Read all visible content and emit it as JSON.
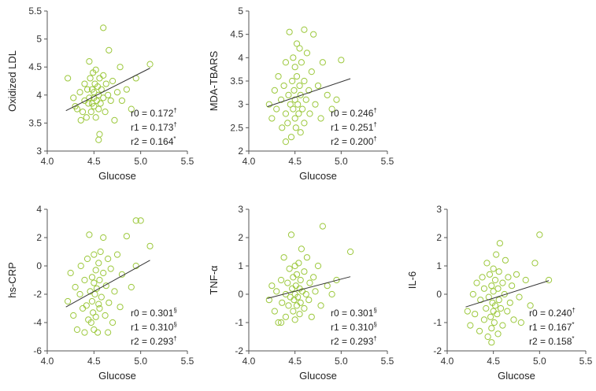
{
  "colors": {
    "point": "#9cc83c",
    "line": "#333333",
    "axis": "#555555"
  },
  "chart_data": [
    {
      "type": "scatter",
      "xlabel": "Glucose",
      "ylabel": "Oxidized LDL",
      "xlim": [
        4.0,
        5.5
      ],
      "ylim": [
        3,
        5.5
      ],
      "xticks": [
        "4.0",
        "4.5",
        "5.0",
        "5.5"
      ],
      "yticks": [
        "3",
        "3.5",
        "4",
        "4.5",
        "5",
        "5.5"
      ],
      "regression": {
        "x": [
          4.2,
          5.1
        ],
        "y": [
          3.72,
          4.48
        ]
      },
      "stats": [
        "r0 = 0.172",
        "r1 = 0.173",
        "r2 = 0.164"
      ],
      "stat_marks": [
        "†",
        "†",
        "*"
      ],
      "points": [
        [
          4.22,
          4.3
        ],
        [
          4.28,
          3.95
        ],
        [
          4.3,
          3.8
        ],
        [
          4.32,
          3.75
        ],
        [
          4.35,
          4.05
        ],
        [
          4.36,
          3.55
        ],
        [
          4.38,
          3.7
        ],
        [
          4.4,
          3.9
        ],
        [
          4.4,
          4.2
        ],
        [
          4.42,
          3.6
        ],
        [
          4.43,
          4.1
        ],
        [
          4.44,
          3.85
        ],
        [
          4.45,
          4.6
        ],
        [
          4.45,
          3.95
        ],
        [
          4.46,
          4.3
        ],
        [
          4.47,
          3.7
        ],
        [
          4.48,
          4.1
        ],
        [
          4.48,
          3.85
        ],
        [
          4.49,
          4.4
        ],
        [
          4.5,
          3.95
        ],
        [
          4.5,
          4.05
        ],
        [
          4.5,
          3.8
        ],
        [
          4.51,
          4.2
        ],
        [
          4.52,
          3.6
        ],
        [
          4.52,
          4.45
        ],
        [
          4.53,
          3.9
        ],
        [
          4.54,
          4.15
        ],
        [
          4.55,
          3.75
        ],
        [
          4.55,
          4.0
        ],
        [
          4.56,
          3.3
        ],
        [
          4.56,
          4.3
        ],
        [
          4.57,
          3.85
        ],
        [
          4.58,
          4.1
        ],
        [
          4.6,
          4.35
        ],
        [
          4.6,
          3.95
        ],
        [
          4.62,
          3.7
        ],
        [
          4.63,
          4.2
        ],
        [
          4.65,
          4.0
        ],
        [
          4.66,
          4.8
        ],
        [
          4.68,
          3.9
        ],
        [
          4.7,
          4.25
        ],
        [
          4.72,
          3.55
        ],
        [
          4.75,
          4.05
        ],
        [
          4.78,
          4.5
        ],
        [
          4.8,
          3.9
        ],
        [
          4.85,
          4.1
        ],
        [
          4.9,
          3.75
        ],
        [
          4.95,
          4.3
        ],
        [
          5.1,
          4.55
        ],
        [
          4.6,
          5.2
        ],
        [
          4.55,
          3.2
        ]
      ]
    },
    {
      "type": "scatter",
      "xlabel": "Glucose",
      "ylabel": "MDA-TBARS",
      "xlim": [
        4.0,
        5.5
      ],
      "ylim": [
        2,
        5
      ],
      "xticks": [
        "4.0",
        "4.5",
        "5.0",
        "5.5"
      ],
      "yticks": [
        "2",
        "2.5",
        "3",
        "3.5",
        "4",
        "4.5",
        "5"
      ],
      "regression": {
        "x": [
          4.2,
          5.1
        ],
        "y": [
          2.95,
          3.55
        ]
      },
      "stats": [
        "r0 = 0.246",
        "r1 = 0.251",
        "r2 = 0.200"
      ],
      "stat_marks": [
        "†",
        "†",
        "†"
      ],
      "points": [
        [
          4.22,
          3.0
        ],
        [
          4.25,
          2.7
        ],
        [
          4.28,
          3.3
        ],
        [
          4.3,
          2.9
        ],
        [
          4.32,
          3.6
        ],
        [
          4.35,
          3.1
        ],
        [
          4.36,
          2.5
        ],
        [
          4.38,
          3.4
        ],
        [
          4.4,
          2.8
        ],
        [
          4.4,
          3.9
        ],
        [
          4.42,
          2.6
        ],
        [
          4.43,
          3.2
        ],
        [
          4.44,
          4.55
        ],
        [
          4.45,
          3.0
        ],
        [
          4.46,
          2.3
        ],
        [
          4.47,
          3.5
        ],
        [
          4.48,
          2.9
        ],
        [
          4.48,
          4.0
        ],
        [
          4.49,
          3.3
        ],
        [
          4.5,
          2.7
        ],
        [
          4.5,
          3.1
        ],
        [
          4.5,
          3.8
        ],
        [
          4.51,
          2.5
        ],
        [
          4.52,
          3.6
        ],
        [
          4.52,
          4.3
        ],
        [
          4.53,
          3.0
        ],
        [
          4.54,
          2.8
        ],
        [
          4.55,
          3.4
        ],
        [
          4.55,
          4.2
        ],
        [
          4.56,
          2.4
        ],
        [
          4.56,
          3.2
        ],
        [
          4.57,
          3.9
        ],
        [
          4.58,
          2.9
        ],
        [
          4.6,
          3.5
        ],
        [
          4.6,
          2.6
        ],
        [
          4.62,
          3.1
        ],
        [
          4.63,
          4.1
        ],
        [
          4.65,
          3.3
        ],
        [
          4.66,
          2.8
        ],
        [
          4.68,
          3.7
        ],
        [
          4.7,
          4.5
        ],
        [
          4.72,
          3.0
        ],
        [
          4.75,
          3.4
        ],
        [
          4.78,
          2.7
        ],
        [
          4.8,
          3.9
        ],
        [
          4.85,
          3.2
        ],
        [
          4.9,
          2.9
        ],
        [
          4.95,
          3.1
        ],
        [
          5.0,
          3.95
        ],
        [
          4.6,
          4.6
        ],
        [
          4.4,
          2.2
        ]
      ]
    },
    {
      "type": "scatter",
      "xlabel": "Glucose",
      "ylabel": "hs-CRP",
      "xlim": [
        4.0,
        5.5
      ],
      "ylim": [
        -6,
        4
      ],
      "xticks": [
        "4.0",
        "4.5",
        "5.0",
        "5.5"
      ],
      "yticks": [
        "-6",
        "-4",
        "-2",
        "0",
        "2",
        "4"
      ],
      "regression": {
        "x": [
          4.2,
          5.1
        ],
        "y": [
          -2.9,
          0.4
        ]
      },
      "stats": [
        "r0 = 0.301",
        "r1 = 0.310",
        "r2 = 0.293"
      ],
      "stat_marks": [
        "§",
        "§",
        "†"
      ],
      "points": [
        [
          4.22,
          -2.5
        ],
        [
          4.25,
          -0.5
        ],
        [
          4.28,
          -3.5
        ],
        [
          4.3,
          -1.5
        ],
        [
          4.32,
          -4.5
        ],
        [
          4.35,
          -2.0
        ],
        [
          4.36,
          0.0
        ],
        [
          4.38,
          -3.0
        ],
        [
          4.4,
          -1.0
        ],
        [
          4.4,
          -4.7
        ],
        [
          4.42,
          -2.8
        ],
        [
          4.43,
          0.5
        ],
        [
          4.44,
          -3.8
        ],
        [
          4.45,
          2.2
        ],
        [
          4.46,
          -1.8
        ],
        [
          4.47,
          -4.0
        ],
        [
          4.48,
          -0.8
        ],
        [
          4.48,
          -2.5
        ],
        [
          4.49,
          -3.3
        ],
        [
          4.5,
          0.8
        ],
        [
          4.5,
          -1.2
        ],
        [
          4.5,
          -4.5
        ],
        [
          4.51,
          -2.0
        ],
        [
          4.52,
          -0.3
        ],
        [
          4.52,
          -3.6
        ],
        [
          4.53,
          -1.6
        ],
        [
          4.54,
          -4.7
        ],
        [
          4.55,
          -2.7
        ],
        [
          4.55,
          0.2
        ],
        [
          4.56,
          -1.0
        ],
        [
          4.56,
          -3.0
        ],
        [
          4.57,
          1.0
        ],
        [
          4.58,
          -2.2
        ],
        [
          4.6,
          -0.5
        ],
        [
          4.6,
          2.0
        ],
        [
          4.62,
          -3.5
        ],
        [
          4.63,
          -1.4
        ],
        [
          4.65,
          0.5
        ],
        [
          4.66,
          -2.6
        ],
        [
          4.68,
          -0.2
        ],
        [
          4.7,
          -4.0
        ],
        [
          4.72,
          -1.8
        ],
        [
          4.75,
          0.8
        ],
        [
          4.78,
          -2.9
        ],
        [
          4.8,
          -0.6
        ],
        [
          4.85,
          2.1
        ],
        [
          4.9,
          -1.5
        ],
        [
          4.95,
          0.0
        ],
        [
          5.0,
          3.2
        ],
        [
          4.95,
          3.2
        ],
        [
          5.1,
          1.4
        ],
        [
          4.65,
          -4.7
        ]
      ]
    },
    {
      "type": "scatter",
      "xlabel": "Glucose",
      "ylabel": "TNF-α",
      "xlim": [
        4.0,
        5.5
      ],
      "ylim": [
        -2,
        3
      ],
      "xticks": [
        "4.0",
        "4.5",
        "5.0",
        "5.5"
      ],
      "yticks": [
        "-2",
        "-1",
        "0",
        "1",
        "2",
        "3"
      ],
      "regression": {
        "x": [
          4.2,
          5.1
        ],
        "y": [
          -0.15,
          0.62
        ]
      },
      "stats": [
        "r0 = 0.301",
        "r1 = 0.310",
        "r2 = 0.293"
      ],
      "stat_marks": [
        "§",
        "§",
        "†"
      ],
      "points": [
        [
          4.22,
          -0.2
        ],
        [
          4.25,
          0.3
        ],
        [
          4.28,
          -0.6
        ],
        [
          4.3,
          0.1
        ],
        [
          4.32,
          -1.0
        ],
        [
          4.35,
          0.5
        ],
        [
          4.36,
          -0.3
        ],
        [
          4.38,
          1.3
        ],
        [
          4.4,
          0.0
        ],
        [
          4.4,
          -0.8
        ],
        [
          4.42,
          0.4
        ],
        [
          4.43,
          -0.4
        ],
        [
          4.44,
          0.9
        ],
        [
          4.45,
          -0.1
        ],
        [
          4.46,
          2.1
        ],
        [
          4.47,
          0.2
        ],
        [
          4.48,
          -0.6
        ],
        [
          4.48,
          0.6
        ],
        [
          4.49,
          -0.2
        ],
        [
          4.5,
          1.0
        ],
        [
          4.5,
          0.0
        ],
        [
          4.5,
          -0.9
        ],
        [
          4.51,
          0.3
        ],
        [
          4.52,
          -0.4
        ],
        [
          4.52,
          0.7
        ],
        [
          4.53,
          -0.1
        ],
        [
          4.54,
          1.1
        ],
        [
          4.55,
          0.2
        ],
        [
          4.55,
          -0.7
        ],
        [
          4.56,
          0.5
        ],
        [
          4.56,
          -0.3
        ],
        [
          4.57,
          1.6
        ],
        [
          4.58,
          0.1
        ],
        [
          4.6,
          -0.5
        ],
        [
          4.6,
          0.8
        ],
        [
          4.62,
          0.0
        ],
        [
          4.63,
          1.3
        ],
        [
          4.65,
          -0.2
        ],
        [
          4.66,
          0.4
        ],
        [
          4.68,
          -0.8
        ],
        [
          4.7,
          0.6
        ],
        [
          4.72,
          0.1
        ],
        [
          4.75,
          1.0
        ],
        [
          4.78,
          -0.4
        ],
        [
          4.8,
          2.4
        ],
        [
          4.85,
          0.3
        ],
        [
          4.9,
          0.0
        ],
        [
          4.95,
          0.5
        ],
        [
          5.1,
          1.5
        ],
        [
          4.35,
          -1.0
        ]
      ]
    },
    {
      "type": "scatter",
      "xlabel": "Glucose",
      "ylabel": "IL-6",
      "xlim": [
        4.0,
        5.5
      ],
      "ylim": [
        -2,
        3
      ],
      "xticks": [
        "4.0",
        "4.5",
        "5.0",
        "5.5"
      ],
      "yticks": [
        "-2",
        "-1",
        "0",
        "1",
        "2",
        "3"
      ],
      "regression": {
        "x": [
          4.2,
          5.1
        ],
        "y": [
          -0.45,
          0.48
        ]
      },
      "stats": [
        "r0 = 0.240",
        "r1 = 0.167",
        "r2 = 0.158"
      ],
      "stat_marks": [
        "†",
        "*",
        "*"
      ],
      "points": [
        [
          4.22,
          -0.6
        ],
        [
          4.25,
          -1.1
        ],
        [
          4.28,
          0.0
        ],
        [
          4.3,
          -0.7
        ],
        [
          4.32,
          0.4
        ],
        [
          4.35,
          -1.3
        ],
        [
          4.36,
          -0.2
        ],
        [
          4.38,
          0.6
        ],
        [
          4.4,
          -0.9
        ],
        [
          4.4,
          0.2
        ],
        [
          4.42,
          -0.5
        ],
        [
          4.43,
          1.1
        ],
        [
          4.44,
          -1.5
        ],
        [
          4.45,
          -0.1
        ],
        [
          4.46,
          0.7
        ],
        [
          4.47,
          -0.8
        ],
        [
          4.48,
          0.3
        ],
        [
          4.48,
          -1.2
        ],
        [
          4.49,
          -0.3
        ],
        [
          4.5,
          0.9
        ],
        [
          4.5,
          -0.6
        ],
        [
          4.5,
          0.1
        ],
        [
          4.51,
          -1.0
        ],
        [
          4.52,
          0.5
        ],
        [
          4.52,
          -0.4
        ],
        [
          4.53,
          1.4
        ],
        [
          4.54,
          -0.7
        ],
        [
          4.55,
          0.2
        ],
        [
          4.55,
          -1.4
        ],
        [
          4.56,
          0.8
        ],
        [
          4.56,
          -0.2
        ],
        [
          4.57,
          1.8
        ],
        [
          4.58,
          -0.5
        ],
        [
          4.6,
          0.4
        ],
        [
          4.6,
          -1.1
        ],
        [
          4.62,
          0.0
        ],
        [
          4.63,
          1.2
        ],
        [
          4.65,
          -0.6
        ],
        [
          4.66,
          0.6
        ],
        [
          4.68,
          -0.3
        ],
        [
          4.7,
          0.3
        ],
        [
          4.72,
          -0.9
        ],
        [
          4.75,
          0.7
        ],
        [
          4.78,
          -0.1
        ],
        [
          4.8,
          -1.0
        ],
        [
          4.85,
          0.5
        ],
        [
          4.9,
          -0.4
        ],
        [
          4.95,
          1.1
        ],
        [
          5.0,
          2.1
        ],
        [
          5.1,
          0.5
        ],
        [
          4.48,
          -1.7
        ]
      ]
    }
  ]
}
